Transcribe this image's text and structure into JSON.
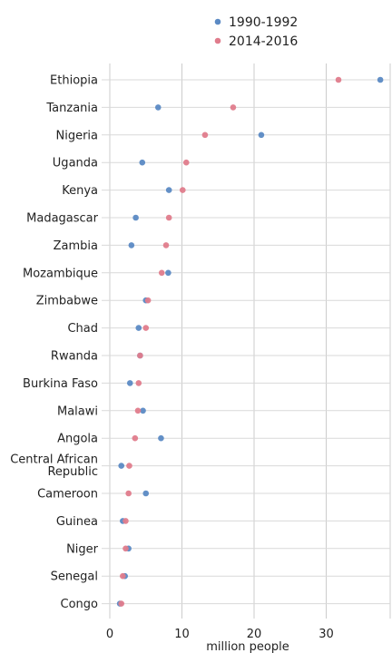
{
  "chart_data": {
    "type": "scatter",
    "xlabel": "million people",
    "xlim": [
      0,
      38.5
    ],
    "xticks": [
      0,
      10,
      20,
      30
    ],
    "grid": true,
    "legend_position": "top-center",
    "categories": [
      "Ethiopia",
      "Tanzania",
      "Nigeria",
      "Uganda",
      "Kenya",
      "Madagascar",
      "Zambia",
      "Mozambique",
      "Zimbabwe",
      "Chad",
      "Rwanda",
      "Burkina Faso",
      "Malawi",
      "Angola",
      "Central African Republic",
      "Cameroon",
      "Guinea",
      "Niger",
      "Senegal",
      "Congo"
    ],
    "series": [
      {
        "name": "1990-1992",
        "color": "#5b8ac4",
        "values": [
          37.5,
          6.7,
          21.0,
          4.5,
          8.2,
          3.6,
          3.0,
          8.1,
          5.0,
          4.0,
          4.2,
          2.8,
          4.6,
          7.1,
          1.6,
          5.0,
          1.8,
          2.6,
          2.1,
          1.4
        ]
      },
      {
        "name": "2014-2016",
        "color": "#e07c8c",
        "values": [
          31.7,
          17.1,
          13.2,
          10.6,
          10.1,
          8.2,
          7.8,
          7.2,
          5.3,
          5.0,
          4.2,
          4.0,
          3.9,
          3.5,
          2.7,
          2.6,
          2.2,
          2.2,
          1.8,
          1.6
        ]
      }
    ]
  }
}
